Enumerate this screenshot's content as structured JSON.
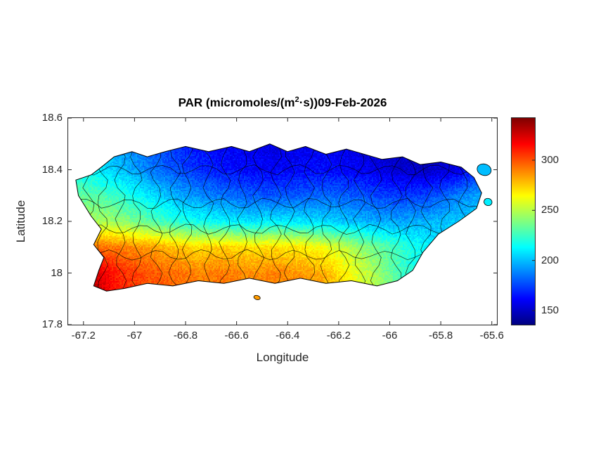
{
  "figure": {
    "title": {
      "prefix": "PAR (micromoles/(m",
      "superscript": "2",
      "suffix": "·s))09-Feb-2026"
    },
    "xlabel": "Longitude",
    "ylabel": "Latitude"
  },
  "chart_data": {
    "type": "heatmap",
    "title": "PAR (micromoles/(m^2·s))09-Feb-2026",
    "xlabel": "Longitude",
    "ylabel": "Latitude",
    "region": "Puerto Rico municipalities",
    "xlim": [
      -67.26,
      -65.58
    ],
    "ylim": [
      17.8,
      18.6
    ],
    "x_ticks": [
      -67.2,
      -67,
      -66.8,
      -66.6,
      -66.4,
      -66.2,
      -66,
      -65.8,
      -65.6
    ],
    "x_tick_labels": [
      "-67.2",
      "-67",
      "-66.8",
      "-66.6",
      "-66.4",
      "-66.2",
      "-66",
      "-65.8",
      "-65.6"
    ],
    "y_ticks": [
      17.8,
      18,
      18.2,
      18.4,
      18.6
    ],
    "y_tick_labels": [
      "17.8",
      "18",
      "18.2",
      "18.4",
      "18.6"
    ],
    "colormap": "jet",
    "clim": [
      136,
      342
    ],
    "colorbar_ticks": [
      150,
      200,
      250,
      300
    ],
    "grid": {
      "lons": [
        -67.25,
        -67.15,
        -67.05,
        -66.95,
        -66.85,
        -66.75,
        -66.65,
        -66.55,
        -66.45,
        -66.35,
        -66.25,
        -66.15,
        -66.05,
        -65.95,
        -65.85,
        -65.75,
        -65.65,
        -65.55
      ],
      "lats": [
        17.9,
        18.0,
        18.1,
        18.2,
        18.3,
        18.4,
        18.5
      ],
      "values": [
        [
          335,
          330,
          310,
          300,
          295,
          292,
          295,
          290,
          292,
          288,
          285,
          270,
          250,
          230,
          215,
          205,
          200,
          200
        ],
        [
          330,
          325,
          308,
          300,
          295,
          290,
          292,
          288,
          290,
          285,
          280,
          262,
          245,
          225,
          212,
          205,
          200,
          198
        ],
        [
          300,
          295,
          290,
          285,
          278,
          272,
          275,
          270,
          272,
          268,
          262,
          248,
          235,
          222,
          212,
          205,
          200,
          198
        ],
        [
          250,
          248,
          242,
          232,
          222,
          215,
          212,
          208,
          210,
          208,
          205,
          200,
          196,
          195,
          198,
          202,
          205,
          205
        ],
        [
          235,
          230,
          222,
          210,
          198,
          190,
          185,
          180,
          178,
          180,
          182,
          180,
          175,
          172,
          175,
          185,
          195,
          200
        ],
        [
          215,
          210,
          200,
          188,
          178,
          170,
          165,
          162,
          160,
          162,
          163,
          160,
          157,
          152,
          150,
          155,
          168,
          180
        ],
        [
          205,
          200,
          192,
          182,
          172,
          165,
          160,
          158,
          156,
          158,
          160,
          157,
          152,
          148,
          147,
          152,
          162,
          172
        ]
      ]
    },
    "region_outline": [
      [
        -67.17,
        18.38
      ],
      [
        -67.13,
        18.41
      ],
      [
        -67.08,
        18.45
      ],
      [
        -67.01,
        18.47
      ],
      [
        -66.95,
        18.45
      ],
      [
        -66.88,
        18.47
      ],
      [
        -66.8,
        18.49
      ],
      [
        -66.71,
        18.47
      ],
      [
        -66.62,
        18.49
      ],
      [
        -66.55,
        18.47
      ],
      [
        -66.47,
        18.5
      ],
      [
        -66.4,
        18.47
      ],
      [
        -66.33,
        18.49
      ],
      [
        -66.25,
        18.46
      ],
      [
        -66.17,
        18.48
      ],
      [
        -66.1,
        18.46
      ],
      [
        -66.03,
        18.44
      ],
      [
        -65.95,
        18.45
      ],
      [
        -65.88,
        18.42
      ],
      [
        -65.8,
        18.43
      ],
      [
        -65.72,
        18.41
      ],
      [
        -65.67,
        18.37
      ],
      [
        -65.64,
        18.31
      ],
      [
        -65.66,
        18.25
      ],
      [
        -65.73,
        18.2
      ],
      [
        -65.81,
        18.15
      ],
      [
        -65.87,
        18.08
      ],
      [
        -65.91,
        18.01
      ],
      [
        -65.97,
        17.97
      ],
      [
        -66.05,
        17.95
      ],
      [
        -66.15,
        17.97
      ],
      [
        -66.25,
        17.96
      ],
      [
        -66.35,
        17.98
      ],
      [
        -66.45,
        17.96
      ],
      [
        -66.55,
        17.98
      ],
      [
        -66.65,
        17.96
      ],
      [
        -66.75,
        17.97
      ],
      [
        -66.85,
        17.95
      ],
      [
        -66.95,
        17.96
      ],
      [
        -67.04,
        17.94
      ],
      [
        -67.11,
        17.93
      ],
      [
        -67.16,
        17.95
      ],
      [
        -67.14,
        18.01
      ],
      [
        -67.12,
        18.06
      ],
      [
        -67.16,
        18.11
      ],
      [
        -67.13,
        18.17
      ],
      [
        -67.17,
        18.22
      ],
      [
        -67.22,
        18.3
      ],
      [
        -67.23,
        18.36
      ]
    ],
    "islets": [
      {
        "lon": -65.63,
        "lat": 18.4,
        "rlon": 0.028,
        "rlat": 0.022,
        "value": 200
      },
      {
        "lon": -65.615,
        "lat": 18.275,
        "rlon": 0.016,
        "rlat": 0.014,
        "value": 210
      },
      {
        "lon": -66.52,
        "lat": 17.905,
        "rlon": 0.013,
        "rlat": 0.008,
        "value": 285
      }
    ],
    "axis_color": "#262626",
    "boundary_color": "#000000"
  }
}
